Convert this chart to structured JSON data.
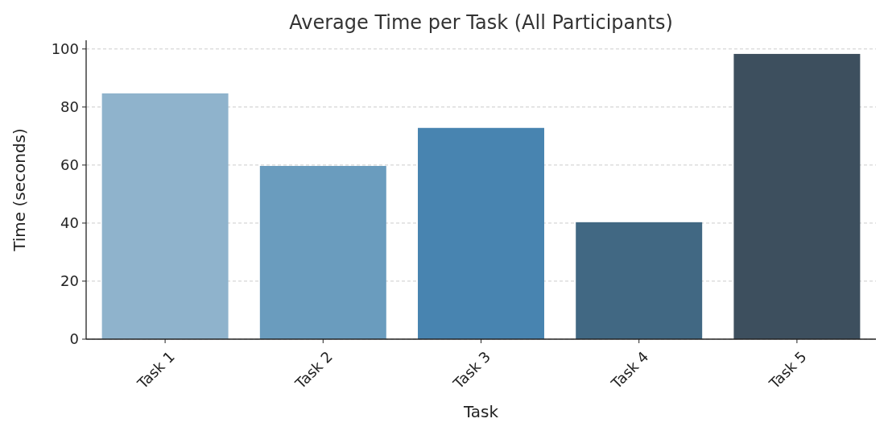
{
  "chart_data": {
    "type": "bar",
    "title": "Average Time per Task (All Participants)",
    "xlabel": "Task",
    "ylabel": "Time (seconds)",
    "categories": [
      "Task 1",
      "Task 2",
      "Task 3",
      "Task 4",
      "Task 5"
    ],
    "values": [
      84.7,
      59.7,
      72.8,
      40.3,
      98.3
    ],
    "colors": [
      "#8fb3cc",
      "#6a9cbe",
      "#4884b0",
      "#416883",
      "#3d4f5e"
    ],
    "ylim": [
      0,
      103
    ],
    "yticks": [
      0,
      20,
      40,
      60,
      80,
      100
    ],
    "grid": "y"
  }
}
